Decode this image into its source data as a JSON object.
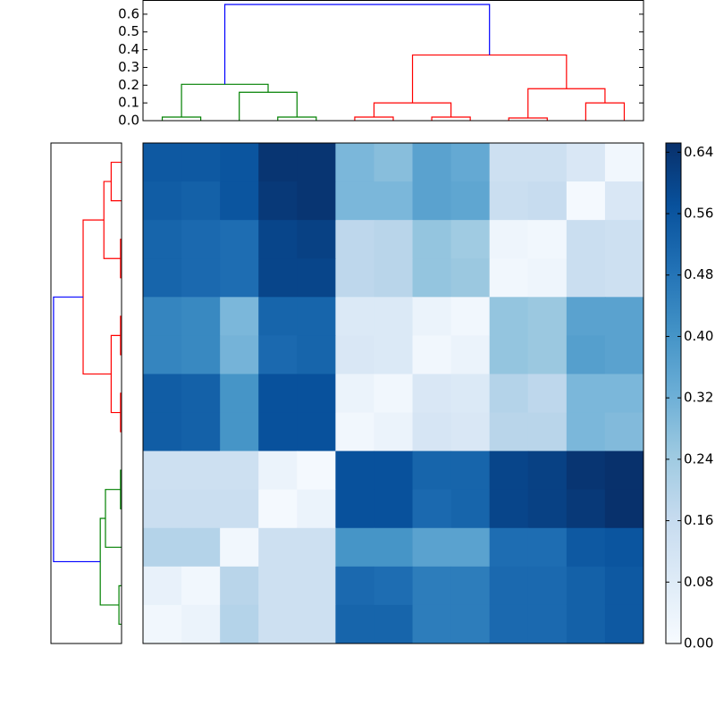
{
  "chart_data": [
    {
      "type": "dendrogram",
      "orientation": "top",
      "ylim": [
        0,
        0.68
      ],
      "yticks": [
        {
          "value": 0,
          "label": "0.0"
        },
        {
          "value": 0.1,
          "label": "0.1"
        },
        {
          "value": 0.2,
          "label": "0.2"
        },
        {
          "value": 0.3,
          "label": "0.3"
        },
        {
          "value": 0.4,
          "label": "0.4"
        },
        {
          "value": 0.5,
          "label": "0.5"
        },
        {
          "value": 0.6,
          "label": "0.6"
        }
      ],
      "links": [
        {
          "x": [
            0,
            0,
            1,
            1
          ],
          "y": [
            0,
            0.02,
            0.02,
            0
          ],
          "color": "#008000"
        },
        {
          "x": [
            3,
            3,
            4,
            4
          ],
          "y": [
            0,
            0.02,
            0.02,
            0
          ],
          "color": "#008000"
        },
        {
          "x": [
            2,
            2,
            3.5,
            3.5
          ],
          "y": [
            0,
            0.16,
            0.16,
            0.02
          ],
          "color": "#008000"
        },
        {
          "x": [
            0.5,
            0.5,
            2.75,
            2.75
          ],
          "y": [
            0.02,
            0.205,
            0.205,
            0.16
          ],
          "color": "#008000"
        },
        {
          "x": [
            5,
            5,
            6,
            6
          ],
          "y": [
            0,
            0.02,
            0.02,
            0
          ],
          "color": "#ff0000"
        },
        {
          "x": [
            7,
            7,
            8,
            8
          ],
          "y": [
            0,
            0.02,
            0.02,
            0
          ],
          "color": "#ff0000"
        },
        {
          "x": [
            5.5,
            5.5,
            7.5,
            7.5
          ],
          "y": [
            0.02,
            0.1,
            0.1,
            0.02
          ],
          "color": "#ff0000"
        },
        {
          "x": [
            9,
            9,
            10,
            10
          ],
          "y": [
            0,
            0.015,
            0.015,
            0
          ],
          "color": "#ff0000"
        },
        {
          "x": [
            11,
            11,
            12,
            12
          ],
          "y": [
            0,
            0.1,
            0.1,
            0
          ],
          "color": "#ff0000"
        },
        {
          "x": [
            9.5,
            9.5,
            11.5,
            11.5
          ],
          "y": [
            0.015,
            0.18,
            0.18,
            0.1
          ],
          "color": "#ff0000"
        },
        {
          "x": [
            6.5,
            6.5,
            10.5,
            10.5
          ],
          "y": [
            0.1,
            0.37,
            0.37,
            0.18
          ],
          "color": "#ff0000"
        },
        {
          "x": [
            1.625,
            1.625,
            8.5,
            8.5
          ],
          "y": [
            0.205,
            0.655,
            0.655,
            0.37
          ],
          "color": "#0000ff"
        }
      ]
    },
    {
      "type": "dendrogram",
      "orientation": "left",
      "xlim": [
        0,
        0.68
      ],
      "links": [
        {
          "x": [
            0,
            0,
            1,
            1
          ],
          "y": [
            0,
            0.1,
            0.1,
            0
          ],
          "color": "#ff0000"
        },
        {
          "x": [
            2,
            2,
            3,
            3
          ],
          "y": [
            0,
            0.01,
            0.01,
            0
          ],
          "color": "#ff0000"
        },
        {
          "x": [
            0.5,
            0.5,
            2.5,
            2.5
          ],
          "y": [
            0.1,
            0.17,
            0.17,
            0.01
          ],
          "color": "#ff0000"
        },
        {
          "x": [
            4,
            4,
            5,
            5
          ],
          "y": [
            0,
            0.01,
            0.01,
            0
          ],
          "color": "#ff0000"
        },
        {
          "x": [
            6,
            6,
            7,
            7
          ],
          "y": [
            0,
            0.01,
            0.01,
            0
          ],
          "color": "#ff0000"
        },
        {
          "x": [
            4.5,
            4.5,
            6.5,
            6.5
          ],
          "y": [
            0.01,
            0.1,
            0.1,
            0.01
          ],
          "color": "#ff0000"
        },
        {
          "x": [
            1.5,
            1.5,
            5.5,
            5.5
          ],
          "y": [
            0.17,
            0.37,
            0.37,
            0.1
          ],
          "color": "#ff0000"
        },
        {
          "x": [
            8,
            8,
            9,
            9
          ],
          "y": [
            0,
            0.01,
            0.01,
            0
          ],
          "color": "#008000"
        },
        {
          "x": [
            8.5,
            8.5,
            10,
            10
          ],
          "y": [
            0.01,
            0.155,
            0.155,
            0
          ],
          "color": "#008000"
        },
        {
          "x": [
            11,
            11,
            12,
            12
          ],
          "y": [
            0,
            0.025,
            0.025,
            0
          ],
          "color": "#008000"
        },
        {
          "x": [
            9.25,
            9.25,
            11.5,
            11.5
          ],
          "y": [
            0.155,
            0.205,
            0.205,
            0.025
          ],
          "color": "#008000"
        },
        {
          "x": [
            3.5,
            3.5,
            10.375,
            10.375
          ],
          "y": [
            0.37,
            0.655,
            0.655,
            0.205
          ],
          "color": "#0000ff"
        }
      ]
    },
    {
      "type": "heatmap",
      "cmap": "Blues",
      "clim": [
        0,
        0.652
      ],
      "cticks": [
        {
          "value": 0,
          "label": "0.00"
        },
        {
          "value": 0.08,
          "label": "0.08"
        },
        {
          "value": 0.16,
          "label": "0.16"
        },
        {
          "value": 0.24,
          "label": "0.24"
        },
        {
          "value": 0.32,
          "label": "0.32"
        },
        {
          "value": 0.4,
          "label": "0.40"
        },
        {
          "value": 0.48,
          "label": "0.48"
        },
        {
          "value": 0.56,
          "label": "0.56"
        },
        {
          "value": 0.64,
          "label": "0.64"
        }
      ],
      "values": [
        [
          0.55,
          0.55,
          0.56,
          0.64,
          0.64,
          0.3,
          0.28,
          0.36,
          0.34,
          0.14,
          0.14,
          0.1,
          0.02
        ],
        [
          0.54,
          0.53,
          0.56,
          0.63,
          0.64,
          0.3,
          0.3,
          0.36,
          0.35,
          0.15,
          0.16,
          0.01,
          0.1
        ],
        [
          0.52,
          0.51,
          0.5,
          0.6,
          0.61,
          0.18,
          0.19,
          0.26,
          0.24,
          0.03,
          0.02,
          0.15,
          0.14
        ],
        [
          0.52,
          0.51,
          0.5,
          0.6,
          0.6,
          0.18,
          0.19,
          0.26,
          0.25,
          0.02,
          0.03,
          0.15,
          0.14
        ],
        [
          0.44,
          0.43,
          0.3,
          0.52,
          0.52,
          0.09,
          0.09,
          0.04,
          0.02,
          0.26,
          0.25,
          0.36,
          0.36
        ],
        [
          0.44,
          0.43,
          0.31,
          0.51,
          0.52,
          0.1,
          0.09,
          0.02,
          0.04,
          0.26,
          0.25,
          0.37,
          0.36
        ],
        [
          0.54,
          0.53,
          0.4,
          0.57,
          0.57,
          0.04,
          0.02,
          0.1,
          0.09,
          0.2,
          0.18,
          0.3,
          0.3
        ],
        [
          0.54,
          0.53,
          0.4,
          0.57,
          0.57,
          0.02,
          0.04,
          0.11,
          0.1,
          0.19,
          0.19,
          0.3,
          0.29
        ],
        [
          0.14,
          0.14,
          0.14,
          0.04,
          0.01,
          0.57,
          0.57,
          0.52,
          0.52,
          0.6,
          0.61,
          0.64,
          0.65
        ],
        [
          0.15,
          0.15,
          0.15,
          0.01,
          0.04,
          0.57,
          0.57,
          0.51,
          0.52,
          0.6,
          0.61,
          0.63,
          0.65
        ],
        [
          0.2,
          0.2,
          0.02,
          0.14,
          0.14,
          0.4,
          0.4,
          0.36,
          0.36,
          0.5,
          0.5,
          0.55,
          0.56
        ],
        [
          0.05,
          0.02,
          0.19,
          0.14,
          0.14,
          0.51,
          0.5,
          0.46,
          0.46,
          0.51,
          0.51,
          0.53,
          0.55
        ],
        [
          0.02,
          0.04,
          0.2,
          0.14,
          0.14,
          0.52,
          0.52,
          0.46,
          0.46,
          0.51,
          0.51,
          0.53,
          0.55
        ]
      ]
    }
  ]
}
